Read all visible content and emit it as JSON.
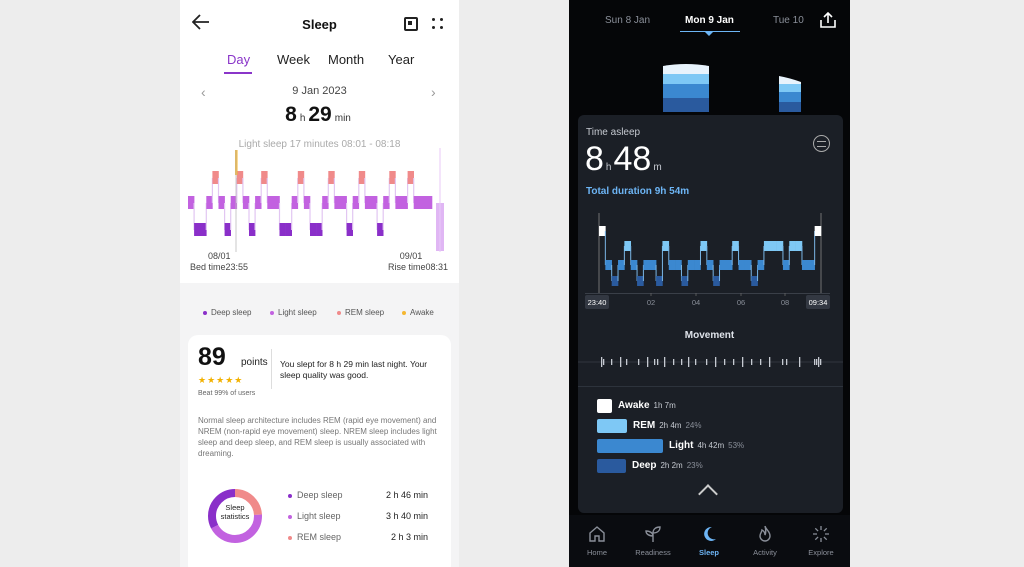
{
  "left_app": {
    "header": {
      "title": "Sleep"
    },
    "tabs": [
      {
        "label": "Day",
        "active": true
      },
      {
        "label": "Week",
        "active": false
      },
      {
        "label": "Month",
        "active": false
      },
      {
        "label": "Year",
        "active": false
      }
    ],
    "date": "9 Jan 2023",
    "duration": {
      "hours": "8",
      "h_unit": "h",
      "minutes": "29",
      "m_unit": "min"
    },
    "selected_segment": "Light sleep 17 minutes 08:01 - 08:18",
    "timeline": {
      "start_date": "08/01",
      "start_label": "Bed time23:55",
      "end_date": "09/01",
      "end_label": "Rise time08:31"
    },
    "legend": [
      {
        "label": "Deep sleep",
        "color": "#8a2fc9"
      },
      {
        "label": "Light sleep",
        "color": "#c262e0"
      },
      {
        "label": "REM sleep",
        "color": "#f08a8a"
      },
      {
        "label": "Awake",
        "color": "#f5b731"
      }
    ],
    "card": {
      "score": "89",
      "score_unit": "points",
      "stars": "★★★★★",
      "beat": "Beat 99% of users",
      "summary": "You slept for 8 h 29 min last night. Your sleep quality was good.",
      "description": "Normal sleep architecture includes REM (rapid eye movement) and NREM (non-rapid eye movement) sleep. NREM sleep includes light sleep and deep sleep, and REM sleep is usually associated with dreaming.",
      "donut_label": "Sleep statistics",
      "stats": [
        {
          "label": "Deep sleep",
          "value": "2 h 46 min",
          "color": "#8a2fc9"
        },
        {
          "label": "Light sleep",
          "value": "3 h 40 min",
          "color": "#c262e0"
        },
        {
          "label": "REM sleep",
          "value": "2 h 3 min",
          "color": "#f08a8a"
        }
      ]
    }
  },
  "right_app": {
    "dates": [
      {
        "label": "Sun 8 Jan",
        "active": false
      },
      {
        "label": "Mon 9 Jan",
        "active": true
      },
      {
        "label": "Tue 10",
        "active": false
      }
    ],
    "time_asleep_label": "Time asleep",
    "time_asleep": {
      "hours": "8",
      "h_unit": "h",
      "minutes": "48",
      "m_unit": "m"
    },
    "total_duration": "Total duration 9h 54m",
    "hypnogram": {
      "start": "23:40",
      "ticks": [
        "02",
        "04",
        "06",
        "08"
      ],
      "end": "09:34"
    },
    "movement_label": "Movement",
    "stages": [
      {
        "name": "Awake",
        "duration": "1h 7m",
        "percent": "",
        "color": "#ffffff",
        "fraction": 0.11
      },
      {
        "name": "REM",
        "duration": "2h 4m",
        "percent": "24%",
        "color": "#7ec8f5",
        "fraction": 0.24
      },
      {
        "name": "Light",
        "duration": "4h 42m",
        "percent": "53%",
        "color": "#3b88d0",
        "fraction": 0.53
      },
      {
        "name": "Deep",
        "duration": "2h 2m",
        "percent": "23%",
        "color": "#2a5a9e",
        "fraction": 0.23
      }
    ],
    "nav": [
      {
        "label": "Home",
        "icon": "home-icon",
        "active": false
      },
      {
        "label": "Readiness",
        "icon": "sprout-icon",
        "active": false
      },
      {
        "label": "Sleep",
        "icon": "moon-icon",
        "active": true
      },
      {
        "label": "Activity",
        "icon": "flame-icon",
        "active": false
      },
      {
        "label": "Explore",
        "icon": "sparkle-icon",
        "active": false
      }
    ]
  }
}
